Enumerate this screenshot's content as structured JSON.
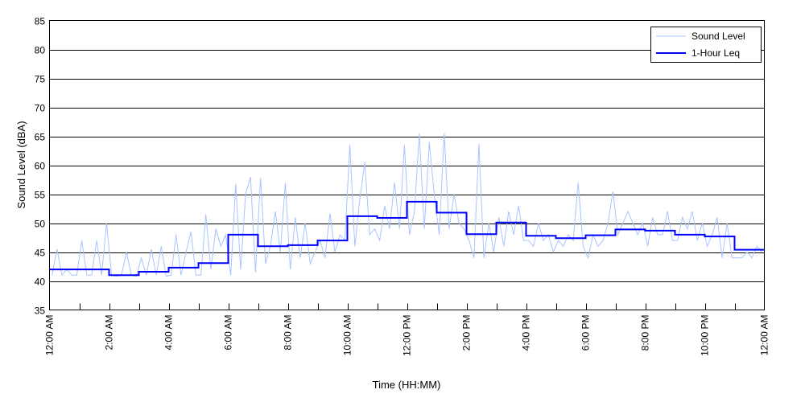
{
  "chart_data": {
    "type": "line",
    "title": "",
    "xlabel": "Time (HH:MM)",
    "ylabel": "Sound Level (dBA)",
    "xlim_hours": [
      0,
      24
    ],
    "ylim": [
      35,
      85
    ],
    "yticks": [
      35,
      40,
      45,
      50,
      55,
      60,
      65,
      70,
      75,
      80,
      85
    ],
    "xtick_labels": [
      "12:00 AM",
      "2:00 AM",
      "4:00 AM",
      "6:00 AM",
      "8:00 AM",
      "10:00 AM",
      "12:00 PM",
      "2:00 PM",
      "4:00 PM",
      "6:00 PM",
      "8:00 PM",
      "10:00 PM",
      "12:00 AM"
    ],
    "grid": "horizontal",
    "legend_position": "top-right",
    "series": [
      {
        "name": "Sound Level",
        "color": "#a8c4ff",
        "sample_interval_minutes": 10,
        "values": [
          41,
          45.5,
          41,
          42,
          41,
          41,
          47,
          41,
          41,
          47,
          41,
          50,
          41,
          40.8,
          41,
          45,
          41,
          40.8,
          44,
          41,
          45.5,
          41,
          46,
          40.8,
          41,
          48,
          41,
          45,
          48.5,
          41,
          41,
          51.5,
          42,
          49,
          46,
          48,
          41,
          56.8,
          42,
          55,
          58,
          41.5,
          57.8,
          43,
          46,
          52,
          45,
          57,
          42,
          51,
          44,
          50,
          43,
          45,
          47,
          44,
          51.7,
          45,
          48,
          47,
          63.5,
          46,
          54,
          60.5,
          48,
          49,
          47,
          53,
          49,
          57,
          49,
          63.5,
          48,
          52,
          65.5,
          49,
          64,
          55,
          48,
          65.5,
          49,
          55,
          50,
          49,
          47,
          44,
          63.7,
          44,
          50,
          45,
          51,
          46,
          52,
          48,
          53,
          47,
          47,
          46,
          50,
          47,
          48,
          45,
          47,
          46,
          48,
          47,
          57,
          46,
          44,
          48,
          46,
          47,
          50,
          55.5,
          48,
          50,
          52,
          50,
          48,
          50,
          46,
          51,
          48,
          48,
          52,
          47,
          47,
          51,
          49,
          52,
          47,
          50,
          46,
          48,
          51,
          44,
          50,
          44,
          44,
          44,
          45,
          44,
          46,
          45
        ]
      },
      {
        "name": "1-Hour Leq",
        "color": "#0000ff",
        "hourly_values": [
          42.0,
          42.0,
          41.0,
          41.6,
          42.3,
          43.1,
          48.0,
          46.0,
          46.2,
          47.0,
          51.2,
          50.9,
          53.7,
          51.8,
          48.1,
          50.1,
          47.8,
          47.4,
          47.9,
          48.9,
          48.7,
          48.0,
          47.7,
          45.4
        ]
      }
    ]
  }
}
